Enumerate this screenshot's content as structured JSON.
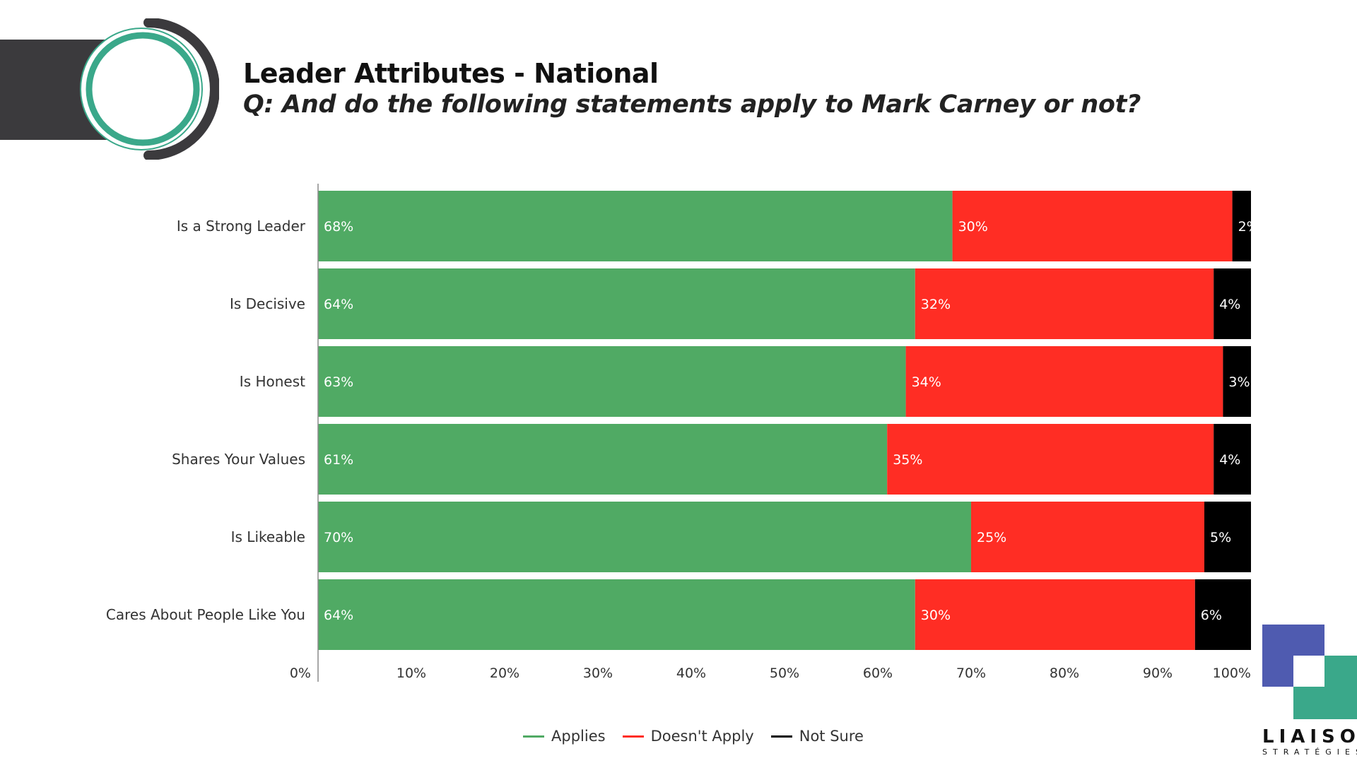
{
  "header": {
    "title": "Leader Attributes - National",
    "subtitle": "Q: And do the following statements apply to Mark Carney or not?"
  },
  "brand": {
    "name": "LIAISON",
    "sub": "STRATÉGIES"
  },
  "colors": {
    "applies": "#50aa64",
    "doesnt_apply": "#ff2d24",
    "not_sure": "#000000",
    "accent": "#3aa88a",
    "dark": "#3b3a3d",
    "logo_blue": "#4f5bb0"
  },
  "icons": {
    "header": "ring-logo-icon",
    "brand": "liaison-logo-icon"
  },
  "chart_data": {
    "type": "bar",
    "orientation": "horizontal",
    "stacked": true,
    "title": "Leader Attributes - National",
    "subtitle": "Q: And do the following statements apply to Mark Carney or not?",
    "categories": [
      "Is a Strong Leader",
      "Is Decisive",
      "Is Honest",
      "Shares Your Values",
      "Is Likeable",
      "Cares About People Like You"
    ],
    "series": [
      {
        "name": "Applies",
        "values": [
          68,
          64,
          63,
          61,
          70,
          64
        ],
        "labels": [
          "68%",
          "64%",
          "63%",
          "61%",
          "70%",
          "64%"
        ]
      },
      {
        "name": "Doesn't Apply",
        "values": [
          30,
          32,
          34,
          35,
          25,
          30
        ],
        "labels": [
          "30%",
          "32%",
          "34%",
          "35%",
          "25%",
          "30%"
        ]
      },
      {
        "name": "Not Sure",
        "values": [
          2,
          4,
          3,
          4,
          5,
          6
        ],
        "labels": [
          "2%",
          "4%",
          "3%",
          "4%",
          "5%",
          "6%"
        ]
      }
    ],
    "xlim": [
      0,
      100
    ],
    "x_ticks": [
      "0%",
      "10%",
      "20%",
      "30%",
      "40%",
      "50%",
      "60%",
      "70%",
      "80%",
      "90%",
      "100%"
    ],
    "grid": false,
    "legend_position": "bottom"
  }
}
